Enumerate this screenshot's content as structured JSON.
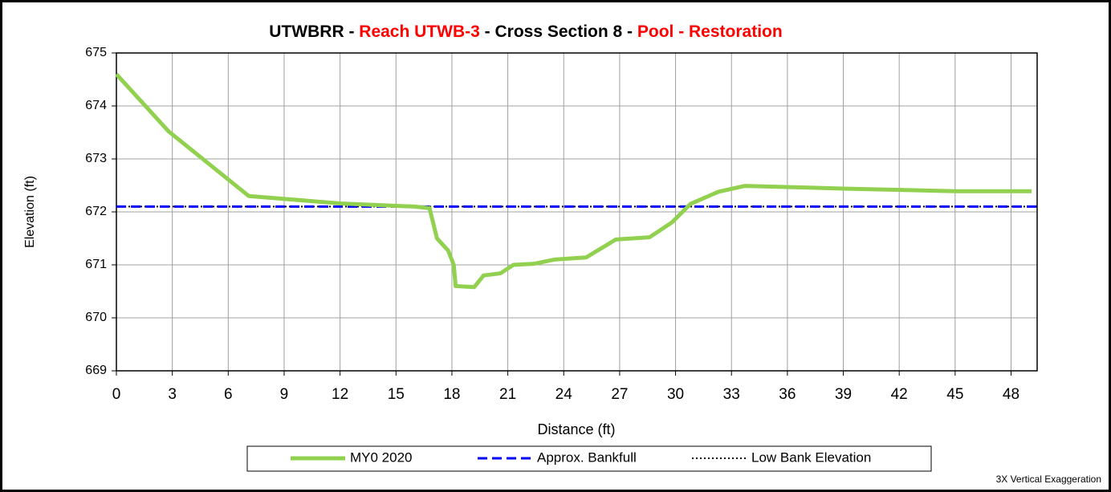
{
  "chart_data": {
    "type": "line",
    "title_segments": [
      {
        "text": "UTWBRR - ",
        "color": "#000000"
      },
      {
        "text": "Reach UTWB-3",
        "color": "#ff0000"
      },
      {
        "text": " - Cross Section 8 - ",
        "color": "#000000"
      },
      {
        "text": "Pool - Restoration",
        "color": "#ff0000"
      }
    ],
    "x_label": "Distance (ft)",
    "y_label": "Elevation (ft)",
    "note": "3X Vertical Exaggeration",
    "xlim": [
      0,
      49.4
    ],
    "ylim": [
      669,
      675
    ],
    "xticks": [
      0,
      3,
      6,
      9,
      12,
      15,
      18,
      21,
      24,
      27,
      30,
      33,
      36,
      39,
      42,
      45,
      48
    ],
    "yticks": [
      669,
      670,
      671,
      672,
      673,
      674,
      675
    ],
    "grid": true,
    "legend": "bottom",
    "series": [
      {
        "name": "MY0 2020",
        "color": "#92d050",
        "width": 5,
        "dash": "none",
        "x": [
          0,
          2.8,
          7.1,
          12,
          16,
          16.8,
          17.2,
          17.8,
          18.1,
          18.2,
          19.2,
          19.7,
          20.6,
          21.3,
          22.4,
          23.5,
          25.2,
          26.8,
          28.6,
          29.8,
          30.8,
          32.3,
          33.7,
          39,
          45,
          49.1
        ],
        "values": [
          674.6,
          673.52,
          672.3,
          672.16,
          672.1,
          672.07,
          671.5,
          671.27,
          671,
          670.6,
          670.58,
          670.8,
          670.84,
          671,
          671.02,
          671.1,
          671.14,
          671.48,
          671.52,
          671.8,
          672.15,
          672.38,
          672.49,
          672.44,
          672.39,
          672.39
        ]
      },
      {
        "name": "Approx. Bankfull",
        "color": "#0000ff",
        "width": 3,
        "dash": "12 6",
        "x": [
          0,
          49.4
        ],
        "values": [
          672.1,
          672.1
        ]
      },
      {
        "name": "Low Bank Elevation",
        "color": "#000000",
        "width": 2,
        "dash": "2 3",
        "x": [
          0,
          49.4
        ],
        "values": [
          672.1,
          672.1
        ]
      }
    ]
  }
}
